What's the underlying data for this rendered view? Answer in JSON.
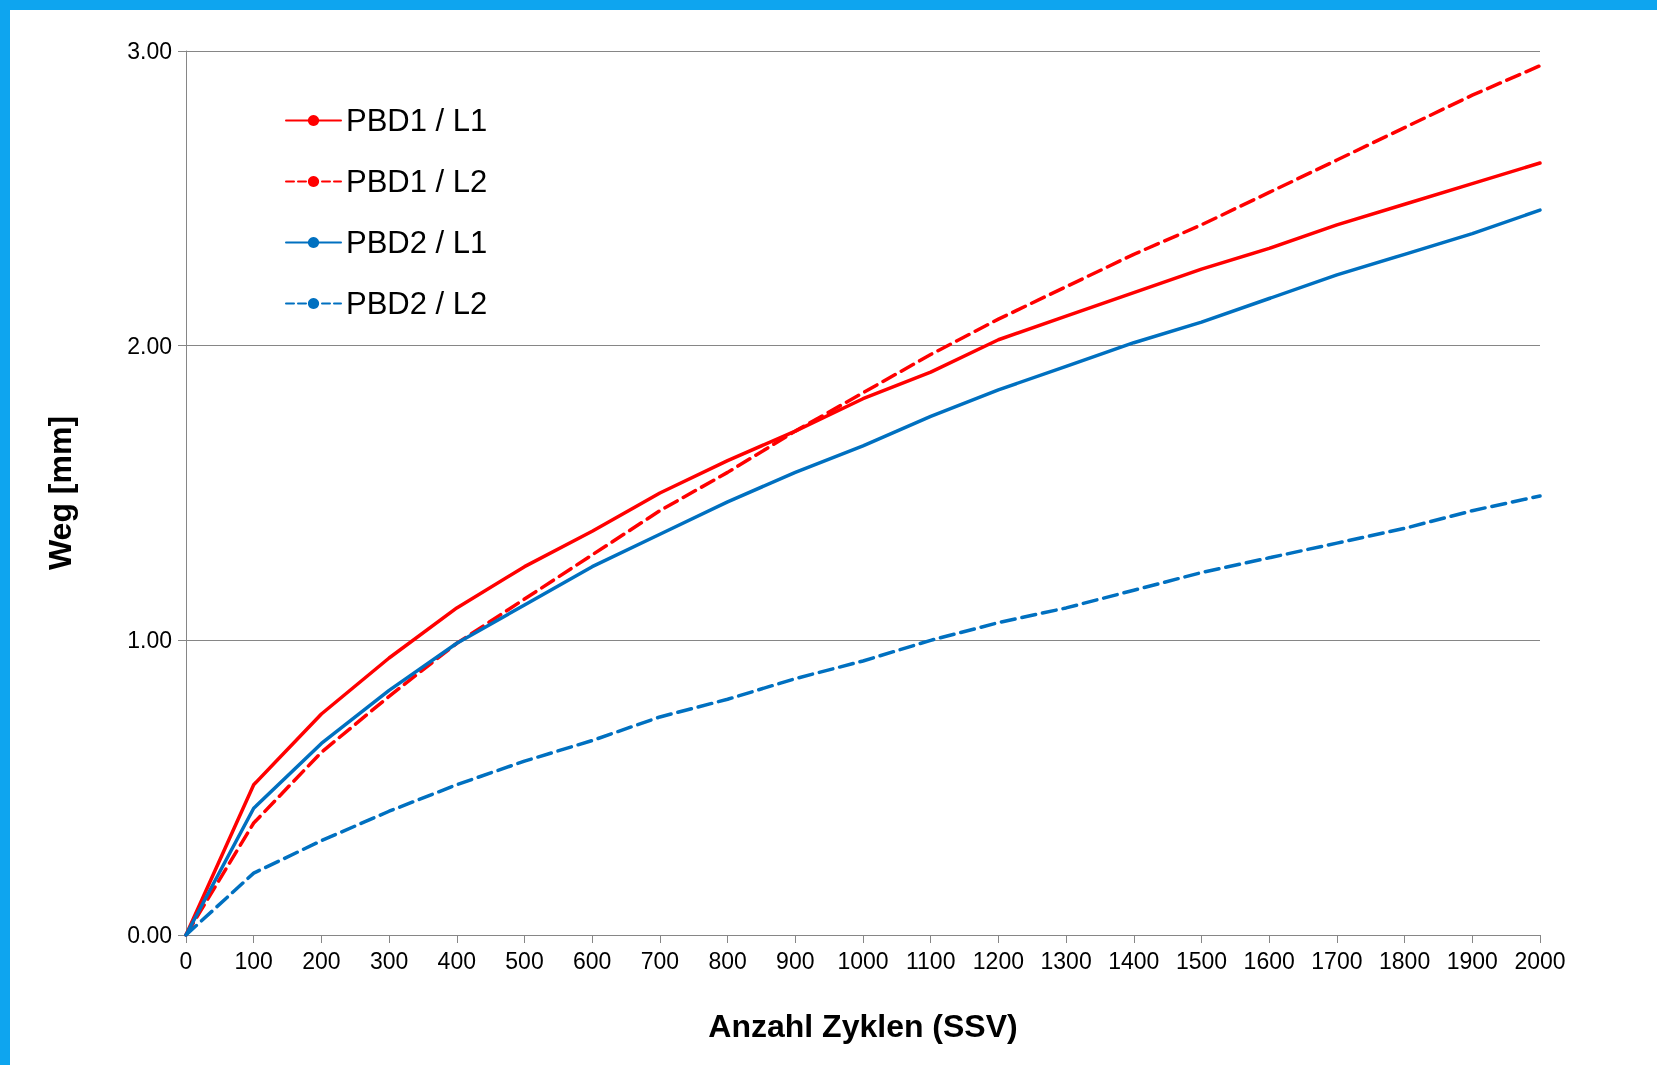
{
  "chart_data": {
    "type": "line",
    "xlabel": "Anzahl Zyklen (SSV)",
    "ylabel": "Weg [mm]",
    "x": [
      0,
      100,
      200,
      300,
      400,
      500,
      600,
      700,
      800,
      900,
      1000,
      1100,
      1200,
      1300,
      1400,
      1500,
      1600,
      1700,
      1800,
      1900,
      2000
    ],
    "series": [
      {
        "name": "PBD1 / L1",
        "color": "#ff0000",
        "line_style": "solid",
        "values": [
          0,
          0.51,
          0.75,
          0.94,
          1.11,
          1.25,
          1.37,
          1.5,
          1.61,
          1.71,
          1.82,
          1.91,
          2.02,
          2.1,
          2.18,
          2.26,
          2.33,
          2.41,
          2.48,
          2.55,
          2.62
        ]
      },
      {
        "name": "PBD1 / L2",
        "color": "#ff0000",
        "line_style": "dashed",
        "values": [
          0,
          0.38,
          0.62,
          0.81,
          0.99,
          1.14,
          1.29,
          1.44,
          1.57,
          1.71,
          1.84,
          1.97,
          2.09,
          2.2,
          2.31,
          2.41,
          2.52,
          2.63,
          2.74,
          2.85,
          2.95
        ]
      },
      {
        "name": "PBD2 / L1",
        "color": "#0070c0",
        "line_style": "solid",
        "values": [
          0,
          0.43,
          0.65,
          0.83,
          0.99,
          1.12,
          1.25,
          1.36,
          1.47,
          1.57,
          1.66,
          1.76,
          1.85,
          1.93,
          2.01,
          2.08,
          2.16,
          2.24,
          2.31,
          2.38,
          2.46
        ]
      },
      {
        "name": "PBD2 / L2",
        "color": "#0070c0",
        "line_style": "dashed",
        "values": [
          0,
          0.21,
          0.32,
          0.42,
          0.51,
          0.59,
          0.66,
          0.74,
          0.8,
          0.87,
          0.93,
          1.0,
          1.06,
          1.11,
          1.17,
          1.23,
          1.28,
          1.33,
          1.38,
          1.44,
          1.49
        ]
      }
    ],
    "xlim": [
      0,
      2000
    ],
    "xticks": [
      0,
      100,
      200,
      300,
      400,
      500,
      600,
      700,
      800,
      900,
      1000,
      1100,
      1200,
      1300,
      1400,
      1500,
      1600,
      1700,
      1800,
      1900,
      2000
    ],
    "ylim": [
      0,
      3
    ],
    "yticks": [
      {
        "value": 0,
        "label": "0.00"
      },
      {
        "value": 1,
        "label": "1.00"
      },
      {
        "value": 2,
        "label": "2.00"
      },
      {
        "value": 3,
        "label": "3.00"
      }
    ],
    "grid": "y",
    "legend": "top left",
    "marker": "none"
  }
}
